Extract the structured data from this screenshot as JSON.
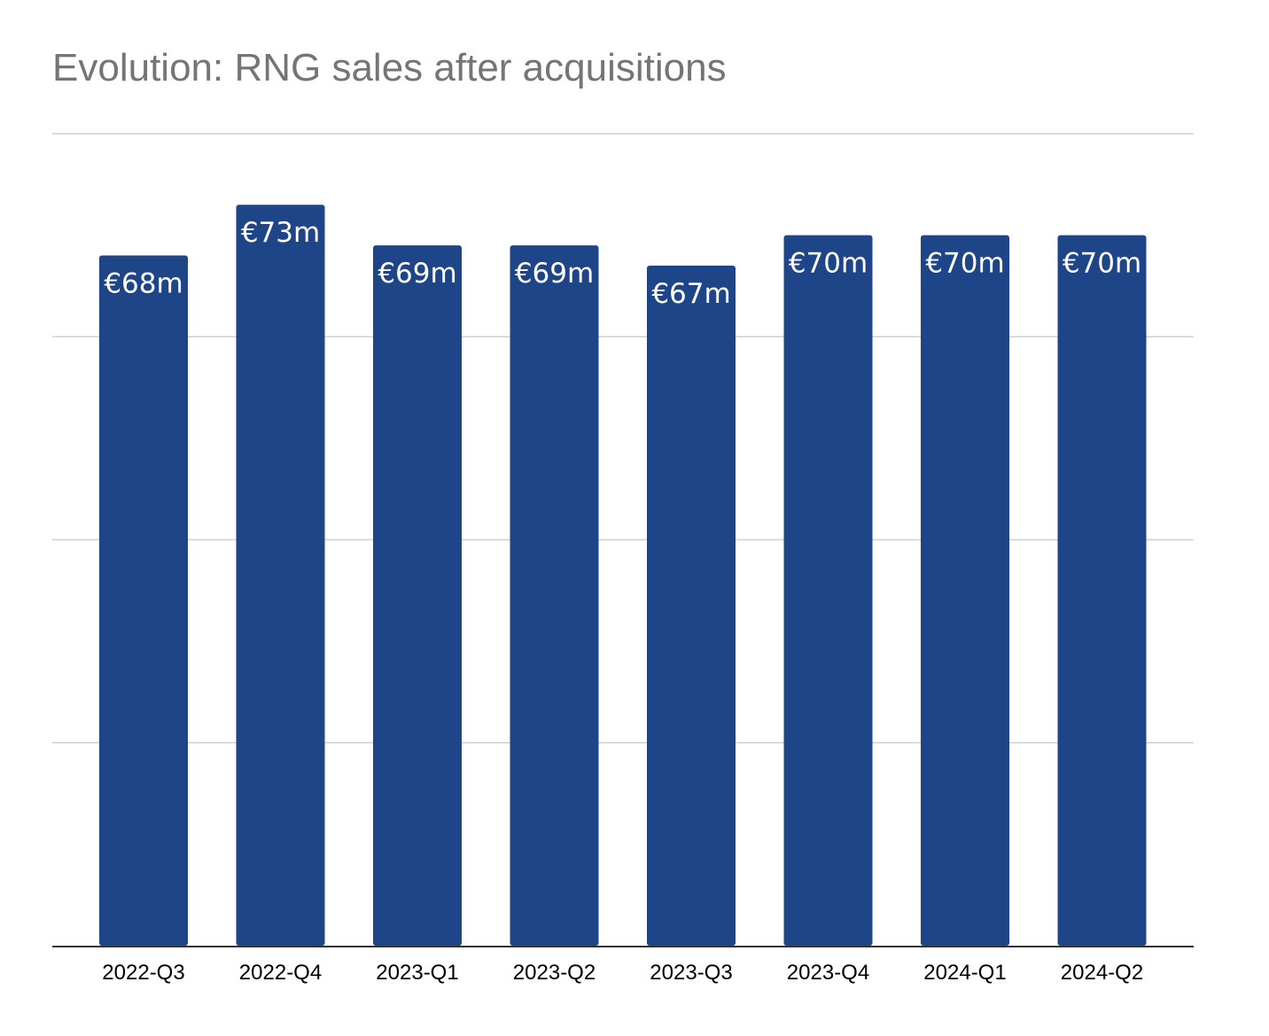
{
  "chart_data": {
    "type": "bar",
    "title": "Evolution: RNG sales after acquisitions",
    "categories": [
      "2022-Q3",
      "2022-Q4",
      "2023-Q1",
      "2023-Q2",
      "2023-Q3",
      "2023-Q4",
      "2024-Q1",
      "2024-Q2"
    ],
    "values": [
      68,
      73,
      69,
      69,
      67,
      70,
      70,
      70
    ],
    "data_labels": [
      "€68m",
      "€73m",
      "€69m",
      "€69m",
      "€67m",
      "€70m",
      "€70m",
      "€70m"
    ],
    "ylim": [
      0,
      80
    ],
    "grid": true,
    "y_tick_labels_visible": false,
    "legend": "none",
    "colors": {
      "bar": "#1e4588",
      "title": "#757575",
      "grid": "#d0d0d0",
      "axis": "#333333",
      "bar_label": "#ffffff"
    }
  }
}
